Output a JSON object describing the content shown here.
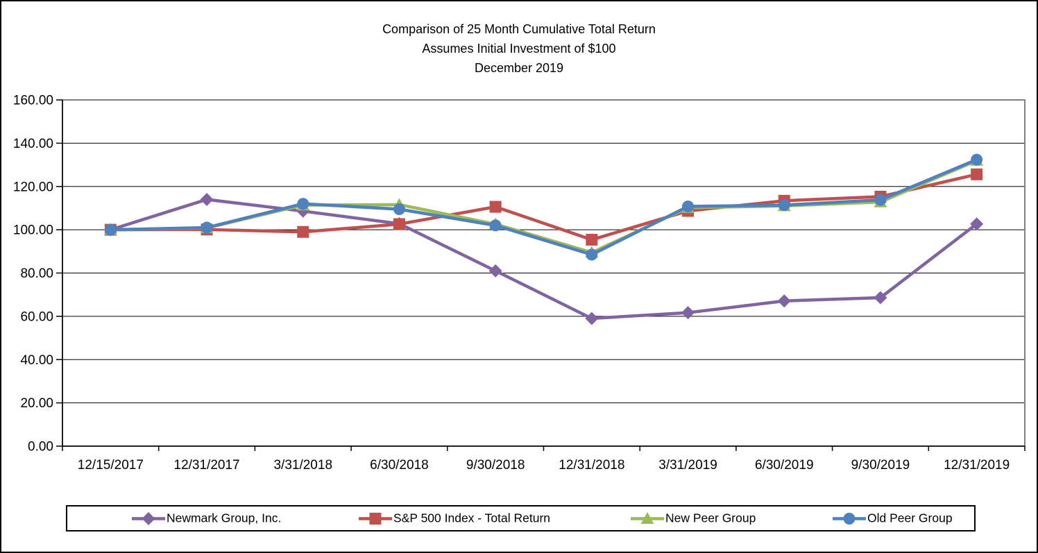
{
  "title": {
    "line1": "Comparison of 25 Month Cumulative Total Return",
    "line2": "Assumes Initial Investment of $100",
    "line3": "December 2019"
  },
  "chart_data": {
    "type": "line",
    "categories": [
      "12/15/2017",
      "12/31/2017",
      "3/31/2018",
      "6/30/2018",
      "9/30/2018",
      "12/31/2018",
      "3/31/2019",
      "6/30/2019",
      "9/30/2019",
      "12/31/2019"
    ],
    "series": [
      {
        "name": "Newmark Group, Inc.",
        "color": "#8064A2",
        "marker": "diamond",
        "values": [
          100.0,
          114.0,
          108.6,
          102.8,
          81.0,
          59.0,
          61.7,
          67.1,
          68.6,
          102.7
        ]
      },
      {
        "name": "S&P 500 Index - Total Return",
        "color": "#C0504D",
        "marker": "square",
        "values": [
          100.0,
          100.1,
          99.0,
          102.6,
          110.6,
          95.4,
          108.7,
          113.4,
          115.3,
          125.6
        ]
      },
      {
        "name": "New Peer Group",
        "color": "#9BBB59",
        "marker": "triangle",
        "values": [
          100.0,
          100.8,
          111.4,
          111.6,
          102.6,
          89.5,
          110.2,
          111.0,
          112.8,
          132.0
        ]
      },
      {
        "name": "Old Peer Group",
        "color": "#4F81BD",
        "marker": "circle",
        "values": [
          100.0,
          101.0,
          112.0,
          109.5,
          102.0,
          88.5,
          110.8,
          111.4,
          113.8,
          132.4
        ]
      }
    ],
    "ylim": [
      0,
      160
    ],
    "y_tick_step": 20,
    "y_tick_labels": [
      "0.00",
      "20.00",
      "40.00",
      "60.00",
      "80.00",
      "100.00",
      "120.00",
      "140.00",
      "160.00"
    ],
    "xlabel": "",
    "ylabel": "",
    "grid": "horizontal",
    "gridline_color": "#000000",
    "plot_border_color": "#808080",
    "axis_color": "#000000",
    "legend_position": "bottom",
    "background": "#ffffff"
  }
}
